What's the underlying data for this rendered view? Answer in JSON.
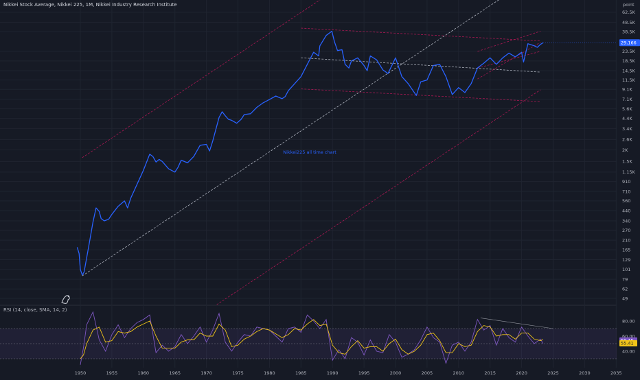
{
  "header": {
    "title": "Nikkei Stock Average, Nikkei 225, 1M, Nikkei Industry Research Institute",
    "unit": "point"
  },
  "rsi": {
    "label": "RSI (14, close, SMA, 14, 2)",
    "current_rsi": "50.15",
    "current_sma": "55.41",
    "level_ticks": [
      "80.00",
      "60.00",
      "40.00"
    ],
    "rsi_color": "#7e57c2",
    "sma_color": "#f0c419"
  },
  "chart_data": {
    "type": "line",
    "title": "Nikkei225 all time chart",
    "scale": "log",
    "ylim": [
      42,
      82000
    ],
    "x_ticks": [
      "1950",
      "1955",
      "1960",
      "1965",
      "1970",
      "1975",
      "1980",
      "1985",
      "1990",
      "1995",
      "2000",
      "2005",
      "2010",
      "2015",
      "2020",
      "2025",
      "2030",
      "2035"
    ],
    "y_ticks": [
      "62.5K",
      "48.5K",
      "38.5K",
      "23.5K",
      "18.5K",
      "14.5K",
      "11.5K",
      "9.1K",
      "7.1K",
      "5.6K",
      "4.4K",
      "3.4K",
      "2.6K",
      "2K",
      "1.5K",
      "1.15K",
      "910",
      "710",
      "560",
      "440",
      "340",
      "270",
      "210",
      "165",
      "129",
      "101",
      "79",
      "62",
      "49"
    ],
    "current_price_label": "29,166",
    "series": [
      {
        "name": "",
        "color": "#2962ff",
        "x": [
          1949.5,
          1949.8,
          1950.0,
          1950.3,
          1950.6,
          1951.0,
          1951.5,
          1952.0,
          1952.5,
          1953.0,
          1953.3,
          1953.8,
          1954.5,
          1955.0,
          1956.0,
          1957.0,
          1957.5,
          1958.0,
          1959.0,
          1960.0,
          1961.0,
          1961.5,
          1962.0,
          1962.5,
          1963.0,
          1964.0,
          1965.0,
          1965.5,
          1966.0,
          1967.0,
          1968.0,
          1969.0,
          1970.0,
          1970.5,
          1971.0,
          1972.0,
          1972.5,
          1973.0,
          1973.5,
          1974.0,
          1974.8,
          1975.5,
          1976.0,
          1977.0,
          1978.0,
          1979.0,
          1980.0,
          1981.0,
          1982.0,
          1982.5,
          1983.0,
          1984.0,
          1985.0,
          1986.0,
          1987.0,
          1987.8,
          1988.0,
          1989.0,
          1989.9,
          1990.3,
          1990.8,
          1991.5,
          1992.0,
          1992.6,
          1993.0,
          1994.0,
          1995.0,
          1995.5,
          1996.0,
          1997.0,
          1998.0,
          1998.8,
          2000.0,
          2001.0,
          2002.0,
          2003.3,
          2004.0,
          2005.0,
          2006.0,
          2007.0,
          2008.0,
          2009.0,
          2010.0,
          2011.0,
          2012.0,
          2013.0,
          2014.0,
          2015.0,
          2016.0,
          2017.0,
          2018.0,
          2019.0,
          2020.0,
          2020.3,
          2021.0,
          2022.0,
          2022.5,
          2023.0,
          2023.4
        ],
        "values": [
          176,
          150,
          101,
          88,
          95,
          135,
          210,
          330,
          470,
          430,
          360,
          340,
          355,
          400,
          490,
          560,
          470,
          600,
          850,
          1200,
          1800,
          1700,
          1480,
          1580,
          1500,
          1250,
          1150,
          1300,
          1550,
          1450,
          1700,
          2250,
          2300,
          1950,
          2500,
          4500,
          5200,
          4700,
          4300,
          4200,
          3900,
          4300,
          4850,
          4950,
          5800,
          6500,
          7050,
          7700,
          7200,
          7600,
          8800,
          10500,
          12500,
          17000,
          23000,
          21000,
          27000,
          35000,
          38900,
          30000,
          24000,
          24500,
          17000,
          15500,
          18500,
          20000,
          16500,
          14500,
          21000,
          19000,
          14800,
          13500,
          20000,
          12500,
          10500,
          7800,
          11000,
          11500,
          16500,
          17000,
          12500,
          8000,
          9500,
          8400,
          10500,
          15500,
          17500,
          20000,
          17000,
          20000,
          22500,
          20500,
          23000,
          18000,
          28500,
          27000,
          26000,
          28000,
          29166
        ]
      }
    ],
    "overlays": [
      {
        "name": "",
        "style": "dashed",
        "color": "#c2185b",
        "x": [
          1950.3,
          2023.0
        ],
        "values": [
          4.5,
          9000
        ]
      },
      {
        "name": "",
        "style": "dashed",
        "color": "#c2185b",
        "x": [
          1950.3,
          2023.0
        ],
        "values": [
          1650,
          3300000
        ]
      },
      {
        "name": "",
        "style": "dashed",
        "color": "#c8cdd8",
        "x": [
          1950.3,
          2023.0
        ],
        "values": [
          86,
          170000
        ]
      },
      {
        "name": "",
        "style": "dashed",
        "color": "#c2185b",
        "x": [
          1985.0,
          2023.0
        ],
        "values": [
          42000,
          30500
        ]
      },
      {
        "name": "",
        "style": "dashed",
        "color": "#c8cdd8",
        "x": [
          1985.0,
          2023.0
        ],
        "values": [
          20000,
          14000
        ]
      },
      {
        "name": "",
        "style": "dashed",
        "color": "#c2185b",
        "x": [
          1985.0,
          2023.0
        ],
        "values": [
          9200,
          6700
        ]
      },
      {
        "name": "",
        "style": "dashed",
        "color": "#c2185b",
        "x": [
          2013.0,
          2023.0
        ],
        "values": [
          23500,
          38900
        ]
      },
      {
        "name": "",
        "style": "dashed",
        "color": "#c2185b",
        "x": [
          2013.0,
          2023.0
        ],
        "values": [
          11800,
          29500
        ]
      },
      {
        "name": "",
        "style": "dashed",
        "color": "#c2185b",
        "x": [
          2013.0,
          2023.0
        ],
        "values": [
          15500,
          23500
        ]
      }
    ],
    "rsi_series": {
      "x": [
        1950,
        1950.5,
        1951,
        1952,
        1953,
        1954,
        1955,
        1956,
        1957,
        1958,
        1959,
        1960,
        1961,
        1962,
        1963,
        1964,
        1965,
        1966,
        1967,
        1968,
        1969,
        1970,
        1971,
        1972,
        1973,
        1974,
        1975,
        1976,
        1977,
        1978,
        1979,
        1980,
        1981,
        1982,
        1983,
        1984,
        1985,
        1986,
        1987,
        1988,
        1989,
        1990,
        1991,
        1992,
        1993,
        1994,
        1995,
        1996,
        1997,
        1998,
        1999,
        2000,
        2001,
        2002,
        2003,
        2004,
        2005,
        2006,
        2007,
        2008,
        2009,
        2010,
        2011,
        2012,
        2013,
        2014,
        2015,
        2016,
        2017,
        2018,
        2019,
        2020,
        2021,
        2022,
        2023,
        2023.4
      ],
      "rsi": [
        22,
        45,
        75,
        92,
        55,
        40,
        62,
        75,
        58,
        70,
        78,
        82,
        88,
        38,
        48,
        40,
        46,
        62,
        50,
        60,
        72,
        52,
        68,
        90,
        52,
        40,
        52,
        62,
        60,
        72,
        70,
        68,
        60,
        52,
        70,
        72,
        65,
        88,
        80,
        70,
        82,
        28,
        42,
        30,
        58,
        52,
        35,
        55,
        40,
        38,
        62,
        52,
        32,
        36,
        42,
        55,
        72,
        58,
        52,
        24,
        48,
        52,
        40,
        52,
        82,
        68,
        74,
        48,
        70,
        58,
        52,
        72,
        60,
        50,
        56,
        50.15
      ],
      "sma": [
        30,
        35,
        50,
        68,
        72,
        52,
        54,
        66,
        64,
        66,
        72,
        76,
        80,
        60,
        44,
        44,
        44,
        52,
        55,
        55,
        64,
        60,
        60,
        76,
        68,
        46,
        48,
        56,
        60,
        66,
        70,
        68,
        63,
        58,
        62,
        70,
        68,
        76,
        82,
        74,
        76,
        48,
        38,
        36,
        46,
        54,
        44,
        46,
        46,
        40,
        50,
        56,
        42,
        36,
        40,
        48,
        62,
        64,
        54,
        38,
        38,
        50,
        46,
        48,
        66,
        74,
        72,
        60,
        62,
        62,
        56,
        64,
        64,
        56,
        54,
        55.41
      ]
    }
  }
}
